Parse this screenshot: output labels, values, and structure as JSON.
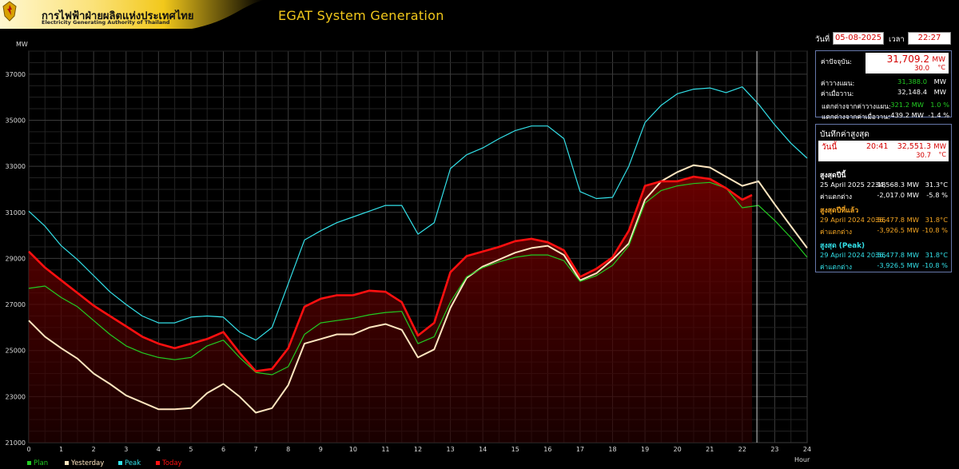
{
  "header": {
    "org_th": "การไฟฟ้าฝ่ายผลิตแห่งประเทศไทย",
    "org_en": "Electricity Generating Authority of Thailand",
    "app_title": "EGAT System Generation"
  },
  "datetime": {
    "date_label": "วันที่",
    "date_value": "05-08-2025",
    "time_label": "เวลา",
    "time_value": "22:27"
  },
  "current": {
    "label": "ค่าปัจจุบัน:",
    "value": "31,709.2",
    "unit": "MW",
    "temp": "30.0",
    "temp_unit": "°C",
    "plan_label": "ค่าวางแผน:",
    "plan_value": "31,388.0",
    "plan_unit": "MW",
    "yesterday_label": "ค่าเมื่อวาน:",
    "yesterday_value": "32,148.4",
    "yesterday_unit": "MW",
    "diff_plan_label": "แตกต่างจากค่าวางแผน:",
    "diff_plan_value": "321.2 MW",
    "diff_plan_pct": "1.0 %",
    "diff_yest_label": "แตกต่างจากค่าเมื่อวาน:",
    "diff_yest_value": "-439.2 MW",
    "diff_yest_pct": "-1.4 %"
  },
  "records": {
    "title": "บันทึกค่าสูงสุด",
    "today_label": "วันนี้",
    "today_time": "20:41",
    "today_value": "32,551.3",
    "today_unit": "MW",
    "today_temp": "30.7",
    "today_temp_unit": "°C",
    "year_title": "สูงสุดปีนี้",
    "year_date": "25 April 2025 22:18",
    "year_value": "34,568.3 MW",
    "year_temp": "31.3°C",
    "year_diff_label": "ค่าแตกต่าง",
    "year_diff_value": "-2,017.0 MW",
    "year_diff_pct": "-5.8 %",
    "lastyear_title": "สูงสุดปีที่แล้ว",
    "lastyear_date": "29 April 2024 20:56",
    "lastyear_value": "36,477.8 MW",
    "lastyear_temp": "31.8°C",
    "lastyear_diff_label": "ค่าแตกต่าง",
    "lastyear_diff_value": "-3,926.5 MW",
    "lastyear_diff_pct": "-10.8 %",
    "peak_title": "สูงสุด (Peak)",
    "peak_date": "29 April 2024 20:56",
    "peak_value": "36,477.8 MW",
    "peak_temp": "31.8°C",
    "peak_diff_label": "ค่าแตกต่าง",
    "peak_diff_value": "-3,926.5 MW",
    "peak_diff_pct": "-10.8 %"
  },
  "colors": {
    "plan": "#22cc22",
    "yesterday": "#ffe6c0",
    "peak": "#33e0e8",
    "today": "#ff1010",
    "title": "#f2c81b",
    "orange": "#f5a623",
    "cyan": "#33e0e8"
  },
  "chart_data": {
    "type": "line",
    "ylabel": "MW",
    "xlabel": "Hour",
    "xlim": [
      0,
      24
    ],
    "ylim": [
      21000,
      38000
    ],
    "yticks": [
      21000,
      23000,
      25000,
      27000,
      29000,
      31000,
      33000,
      35000,
      37000
    ],
    "xticks": [
      0,
      1,
      2,
      3,
      4,
      5,
      6,
      7,
      8,
      9,
      10,
      11,
      12,
      13,
      14,
      15,
      16,
      17,
      18,
      19,
      20,
      21,
      22,
      23,
      24
    ],
    "grid": true,
    "cursor_hour": 22.45,
    "legend_position": "bottom-left",
    "series": [
      {
        "name": "Plan",
        "x": [
          0,
          0.5,
          1,
          1.5,
          2,
          2.5,
          3,
          3.5,
          4,
          4.5,
          5,
          5.5,
          6,
          6.5,
          7,
          7.5,
          8,
          8.5,
          9,
          9.5,
          10,
          10.5,
          11,
          11.5,
          12,
          12.5,
          13,
          13.5,
          14,
          14.5,
          15,
          15.5,
          16,
          16.5,
          17,
          17.5,
          18,
          18.5,
          19,
          19.5,
          20,
          20.5,
          21,
          21.5,
          22,
          22.5,
          23,
          23.5,
          24
        ],
        "y": [
          27700,
          27800,
          27300,
          26900,
          26300,
          25700,
          25200,
          24900,
          24700,
          24600,
          24700,
          25200,
          25450,
          24700,
          24050,
          23950,
          24300,
          25700,
          26200,
          26300,
          26400,
          26550,
          26650,
          26700,
          25300,
          25600,
          27100,
          28200,
          28600,
          28850,
          29050,
          29150,
          29150,
          28900,
          28000,
          28250,
          28700,
          29550,
          31400,
          31950,
          32150,
          32250,
          32300,
          32050,
          31200,
          31300,
          30650,
          29900,
          29050
        ]
      },
      {
        "name": "Yesterday",
        "x": [
          0,
          0.5,
          1,
          1.5,
          2,
          2.5,
          3,
          3.5,
          4,
          4.5,
          5,
          5.5,
          6,
          6.5,
          7,
          7.5,
          8,
          8.5,
          9,
          9.5,
          10,
          10.5,
          11,
          11.5,
          12,
          12.5,
          13,
          13.5,
          14,
          14.5,
          15,
          15.5,
          16,
          16.5,
          17,
          17.5,
          18,
          18.5,
          19,
          19.5,
          20,
          20.5,
          21,
          21.5,
          22,
          22.5,
          23,
          23.5,
          24
        ],
        "y": [
          26300,
          25600,
          25100,
          24650,
          24000,
          23550,
          23050,
          22750,
          22450,
          22450,
          22500,
          23150,
          23550,
          23000,
          22300,
          22500,
          23500,
          25300,
          25500,
          25700,
          25700,
          26000,
          26150,
          25900,
          24700,
          25050,
          26850,
          28150,
          28650,
          28950,
          29250,
          29450,
          29550,
          29150,
          28050,
          28350,
          28950,
          29650,
          31550,
          32350,
          32750,
          33050,
          32950,
          32550,
          32150,
          32350,
          31350,
          30400,
          29450
        ]
      },
      {
        "name": "Peak",
        "x": [
          0,
          0.5,
          1,
          1.5,
          2,
          2.5,
          3,
          3.5,
          4,
          4.5,
          5,
          5.5,
          6,
          6.5,
          7,
          7.5,
          8,
          8.5,
          9,
          9.5,
          10,
          10.5,
          11,
          11.5,
          12,
          12.5,
          13,
          13.5,
          14,
          14.5,
          15,
          15.5,
          16,
          16.5,
          17,
          17.5,
          18,
          18.5,
          19,
          19.5,
          20,
          20.5,
          21,
          21.5,
          22,
          22.5,
          23,
          23.5,
          24
        ],
        "y": [
          31050,
          30400,
          29550,
          28950,
          28250,
          27550,
          27000,
          26500,
          26200,
          26200,
          26450,
          26500,
          26450,
          25800,
          25450,
          26000,
          27900,
          29800,
          30200,
          30550,
          30800,
          31050,
          31300,
          31300,
          30050,
          30550,
          32900,
          33500,
          33800,
          34200,
          34550,
          34750,
          34750,
          34200,
          31900,
          31600,
          31650,
          33000,
          34900,
          35650,
          36150,
          36350,
          36400,
          36200,
          36450,
          35700,
          34800,
          34000,
          33350
        ]
      },
      {
        "name": "Today",
        "x": [
          0,
          0.5,
          1,
          1.5,
          2,
          2.5,
          3,
          3.5,
          4,
          4.5,
          5,
          5.5,
          6,
          6.5,
          7,
          7.5,
          8,
          8.5,
          9,
          9.5,
          10,
          10.5,
          11,
          11.5,
          12,
          12.5,
          13,
          13.5,
          14,
          14.5,
          15,
          15.5,
          16,
          16.5,
          17,
          17.5,
          18,
          18.5,
          19,
          19.5,
          20,
          20.5,
          21,
          21.5,
          22,
          22.3
        ],
        "y": [
          29300,
          28600,
          28050,
          27500,
          26950,
          26500,
          26050,
          25600,
          25300,
          25100,
          25300,
          25500,
          25800,
          24900,
          24100,
          24200,
          25100,
          26900,
          27250,
          27400,
          27400,
          27600,
          27550,
          27100,
          25650,
          26200,
          28400,
          29100,
          29300,
          29500,
          29750,
          29850,
          29700,
          29350,
          28200,
          28550,
          29050,
          30200,
          32150,
          32350,
          32350,
          32550,
          32450,
          32050,
          31550,
          31750
        ]
      }
    ]
  }
}
